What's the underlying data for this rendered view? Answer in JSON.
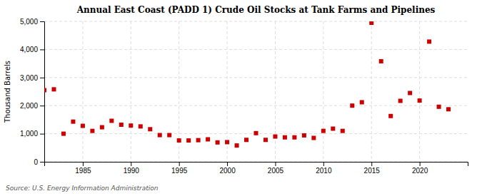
{
  "chart_data": {
    "type": "scatter",
    "title": "Annual East Coast (PADD 1) Crude Oil Stocks at Tank Farms and Pipelines",
    "y_label": "Thousand Barrels",
    "annotations": [
      "Source: U.S. Energy Information Administration"
    ],
    "x": [
      1981,
      1982,
      1983,
      1984,
      1985,
      1986,
      1987,
      1988,
      1989,
      1990,
      1991,
      1992,
      1993,
      1994,
      1995,
      1996,
      1997,
      1998,
      1999,
      2000,
      2001,
      2002,
      2003,
      2004,
      2005,
      2006,
      2007,
      2008,
      2009,
      2010,
      2011,
      2012,
      2013,
      2014,
      2015,
      2016,
      2017,
      2018,
      2019,
      2020,
      2021,
      2022,
      2023
    ],
    "values": [
      2550,
      2580,
      1000,
      1430,
      1280,
      1100,
      1230,
      1460,
      1320,
      1290,
      1260,
      1160,
      950,
      950,
      760,
      760,
      770,
      800,
      690,
      700,
      580,
      780,
      1020,
      780,
      900,
      870,
      870,
      940,
      850,
      1100,
      1180,
      1100,
      2000,
      2120,
      4950,
      3580,
      1630,
      2170,
      2450,
      2180,
      4280,
      1960,
      1870
    ],
    "color": "#cc0000",
    "marker": "square",
    "xlim": [
      1981,
      2025
    ],
    "xticks": [
      1985,
      1990,
      1995,
      2000,
      2005,
      2010,
      2015,
      2020
    ],
    "ylim": [
      0,
      5000
    ],
    "yticks": [
      {
        "value": 0,
        "label": "0"
      },
      {
        "value": 1000,
        "label": "1,000"
      },
      {
        "value": 2000,
        "label": "2,000"
      },
      {
        "value": 3000,
        "label": "3,000"
      },
      {
        "value": 4000,
        "label": "4,000"
      },
      {
        "value": 5000,
        "label": "5,000"
      }
    ],
    "grid": true
  }
}
